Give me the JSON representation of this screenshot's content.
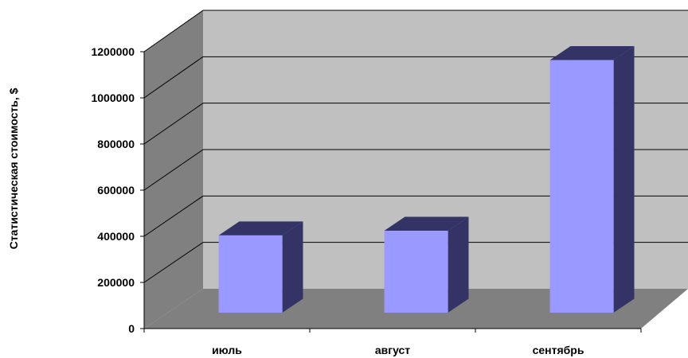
{
  "chart_data": {
    "type": "bar",
    "title": "",
    "xlabel": "",
    "ylabel": "Статистическая стоимость, $",
    "categories": [
      "июль",
      "август",
      "сентябрь"
    ],
    "values": [
      335000,
      355000,
      1095000
    ],
    "ylim": [
      0,
      1200000
    ],
    "yticks": [
      0,
      200000,
      400000,
      600000,
      800000,
      1000000,
      1200000
    ],
    "yticks_labels": [
      "0",
      "200000",
      "400000",
      "600000",
      "800000",
      "1000000",
      "1200000"
    ],
    "grid": true,
    "legend": "none",
    "style": "3d-column",
    "colors": {
      "bar_front": "#9999FF",
      "bar_top": "#333366",
      "bar_side": "#333366",
      "back_wall": "#C0C0C0",
      "side_wall": "#808080",
      "floor": "#808080",
      "gridline": "#000000"
    }
  }
}
